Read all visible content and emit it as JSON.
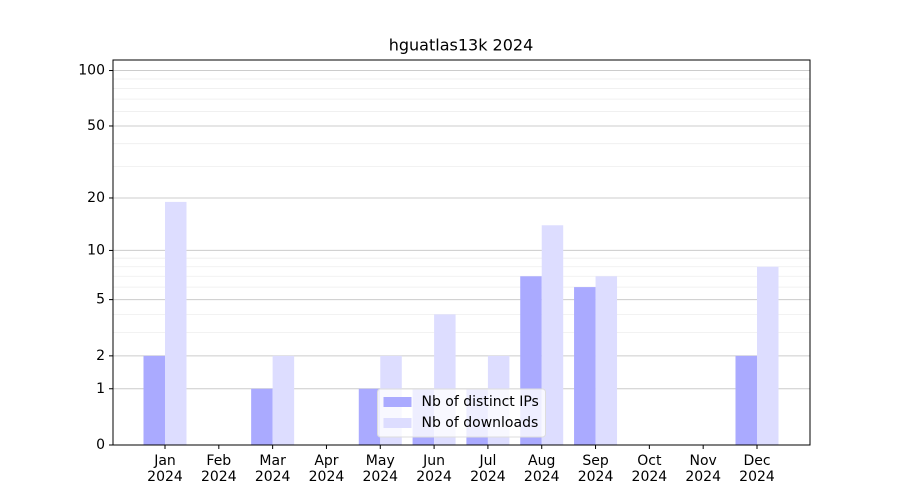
{
  "chart_data": {
    "type": "bar",
    "title": "hguatlas13k 2024",
    "categories": [
      "Jan\n2024",
      "Feb\n2024",
      "Mar\n2024",
      "Apr\n2024",
      "May\n2024",
      "Jun\n2024",
      "Jul\n2024",
      "Aug\n2024",
      "Sep\n2024",
      "Oct\n2024",
      "Nov\n2024",
      "Dec\n2024"
    ],
    "series": [
      {
        "name": "Nb of distinct IPs",
        "color": "#aaaaff",
        "values": [
          2,
          0,
          1,
          0,
          1,
          1,
          1,
          7,
          6,
          0,
          0,
          2
        ]
      },
      {
        "name": "Nb of downloads",
        "color": "#ddddff",
        "values": [
          19,
          0,
          2,
          0,
          2,
          4,
          2,
          14,
          7,
          0,
          0,
          8
        ]
      }
    ],
    "yscale": "log1p",
    "ylim": [
      0,
      114
    ],
    "yticks": [
      0,
      1,
      2,
      5,
      10,
      20,
      50,
      100
    ],
    "minor_yticks": [
      3,
      4,
      6,
      7,
      8,
      9,
      30,
      40,
      60,
      70,
      80,
      90
    ],
    "grid": true,
    "legend": "lower center"
  }
}
